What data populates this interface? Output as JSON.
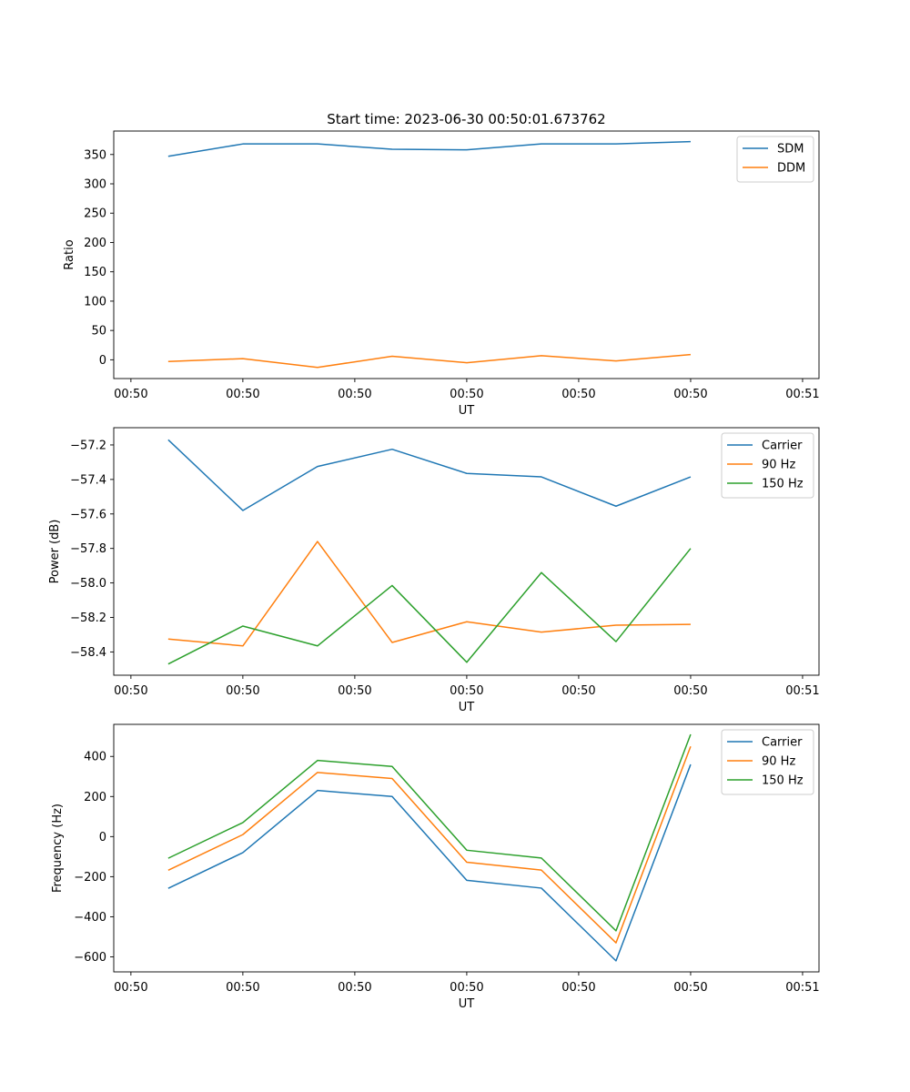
{
  "figure_title": "Start time: 2023-06-30 00:50:01.673762",
  "colors": {
    "blue": "#1f77b4",
    "orange": "#ff7f0e",
    "green": "#2ca02c"
  },
  "chart_data": [
    {
      "type": "line",
      "title": "Start time: 2023-06-30 00:50:01.673762",
      "xlabel": "UT",
      "ylabel": "Ratio",
      "x": [
        1,
        2,
        3,
        4,
        5,
        6,
        7,
        8
      ],
      "xlim": [
        0.27,
        9.72
      ],
      "x_ticks": [
        0.5,
        2.0,
        3.5,
        5.0,
        6.5,
        8.0,
        9.5
      ],
      "x_tick_labels": [
        "00:50",
        "00:50",
        "00:50",
        "00:50",
        "00:50",
        "00:50",
        "00:51"
      ],
      "ylim": [
        -32,
        390
      ],
      "y_ticks": [
        0,
        50,
        100,
        150,
        200,
        250,
        300,
        350
      ],
      "y_tick_labels": [
        "0",
        "50",
        "100",
        "150",
        "200",
        "250",
        "300",
        "350"
      ],
      "legend_position": "upper right",
      "series": [
        {
          "name": "SDM",
          "color": "#1f77b4",
          "values": [
            347,
            368,
            368,
            359,
            358,
            368,
            368,
            372
          ]
        },
        {
          "name": "DDM",
          "color": "#ff7f0e",
          "values": [
            -3,
            2,
            -13,
            6,
            -5,
            7,
            -2,
            9
          ]
        }
      ]
    },
    {
      "type": "line",
      "xlabel": "UT",
      "ylabel": "Power (dB)",
      "x": [
        1,
        2,
        3,
        4,
        5,
        6,
        7,
        8
      ],
      "xlim": [
        0.27,
        9.72
      ],
      "x_ticks": [
        0.5,
        2.0,
        3.5,
        5.0,
        6.5,
        8.0,
        9.5
      ],
      "x_tick_labels": [
        "00:50",
        "00:50",
        "00:50",
        "00:50",
        "00:50",
        "00:50",
        "00:51"
      ],
      "ylim": [
        -58.535,
        -57.1
      ],
      "y_ticks": [
        -57.2,
        -57.4,
        -57.6,
        -57.8,
        -58.0,
        -58.2,
        -58.4
      ],
      "y_tick_labels": [
        "−57.2",
        "−57.4",
        "−57.6",
        "−57.8",
        "−58.0",
        "−58.2",
        "−58.4"
      ],
      "legend_position": "upper right",
      "series": [
        {
          "name": "Carrier",
          "color": "#1f77b4",
          "values": [
            -57.17,
            -57.58,
            -57.325,
            -57.225,
            -57.365,
            -57.385,
            -57.555,
            -57.385
          ]
        },
        {
          "name": "90 Hz",
          "color": "#ff7f0e",
          "values": [
            -58.325,
            -58.365,
            -57.76,
            -58.345,
            -58.225,
            -58.285,
            -58.245,
            -58.24
          ]
        },
        {
          "name": "150 Hz",
          "color": "#2ca02c",
          "values": [
            -58.47,
            -58.25,
            -58.365,
            -58.015,
            -58.46,
            -57.94,
            -58.34,
            -57.8
          ]
        }
      ]
    },
    {
      "type": "line",
      "xlabel": "UT",
      "ylabel": "Frequency (Hz)",
      "x": [
        1,
        2,
        3,
        4,
        5,
        6,
        7,
        8
      ],
      "xlim": [
        0.27,
        9.72
      ],
      "x_ticks": [
        0.5,
        2.0,
        3.5,
        5.0,
        6.5,
        8.0,
        9.5
      ],
      "x_tick_labels": [
        "00:50",
        "00:50",
        "00:50",
        "00:50",
        "00:50",
        "00:50",
        "00:51"
      ],
      "ylim": [
        -675,
        560
      ],
      "y_ticks": [
        400,
        200,
        0,
        -200,
        -400,
        -600
      ],
      "y_tick_labels": [
        "400",
        "200",
        "0",
        "−200",
        "−400",
        "−600"
      ],
      "legend_position": "upper right",
      "series": [
        {
          "name": "Carrier",
          "color": "#1f77b4",
          "values": [
            -258,
            -80,
            230,
            200,
            -218,
            -257,
            -620,
            360
          ]
        },
        {
          "name": "90 Hz",
          "color": "#ff7f0e",
          "values": [
            -168,
            10,
            320,
            290,
            -128,
            -167,
            -530,
            450
          ]
        },
        {
          "name": "150 Hz",
          "color": "#2ca02c",
          "values": [
            -108,
            70,
            380,
            350,
            -68,
            -107,
            -470,
            510
          ]
        }
      ]
    }
  ]
}
